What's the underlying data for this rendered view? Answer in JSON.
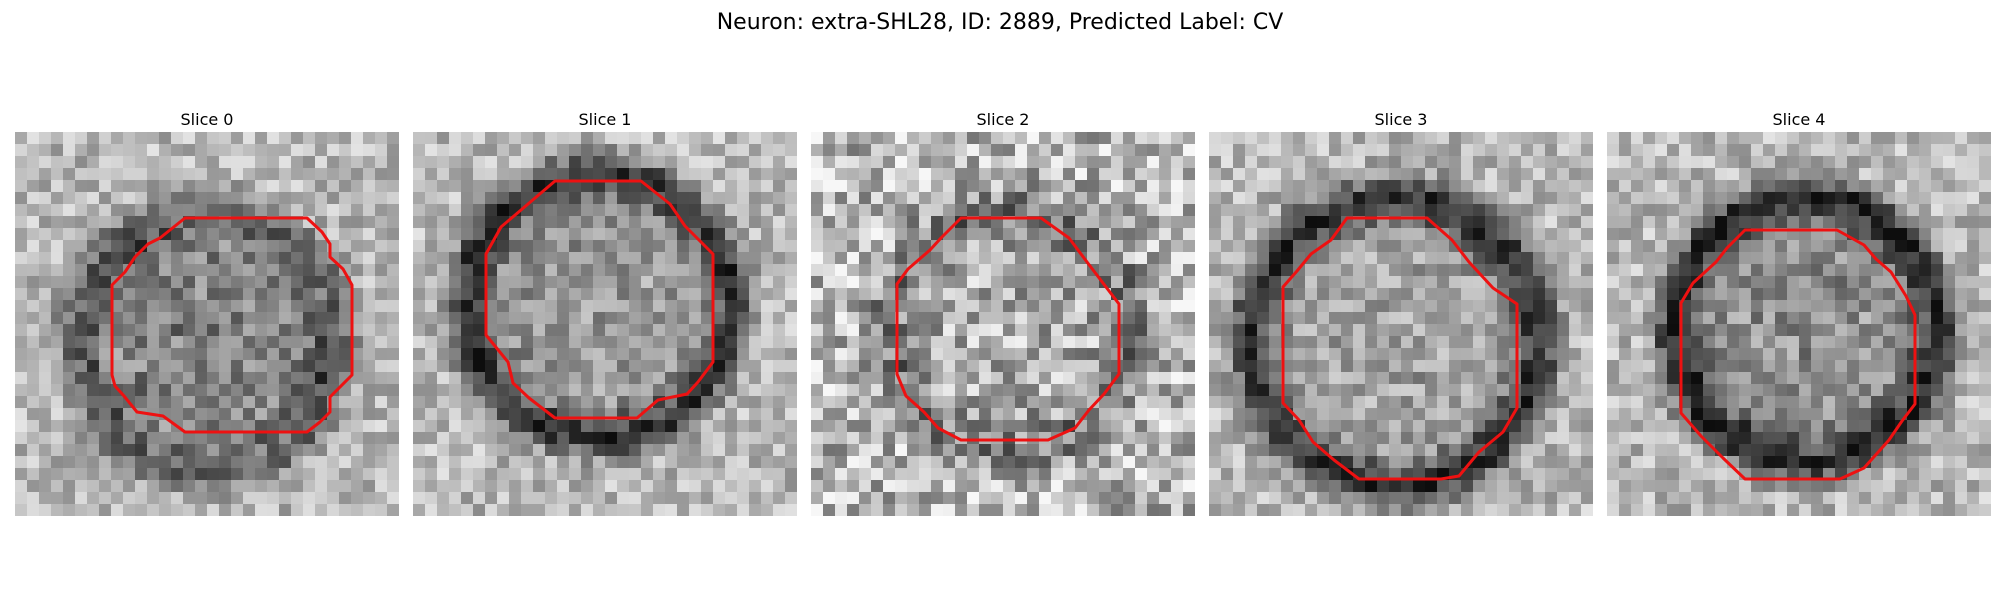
{
  "figure": {
    "title": "Neuron: extra-SHL28, ID: 2889, Predicted Label: CV",
    "contour_color": "#ee1111",
    "panels": [
      {
        "title": "Slice 0"
      },
      {
        "title": "Slice 1"
      },
      {
        "title": "Slice 2"
      },
      {
        "title": "Slice 3"
      },
      {
        "title": "Slice 4"
      }
    ]
  }
}
